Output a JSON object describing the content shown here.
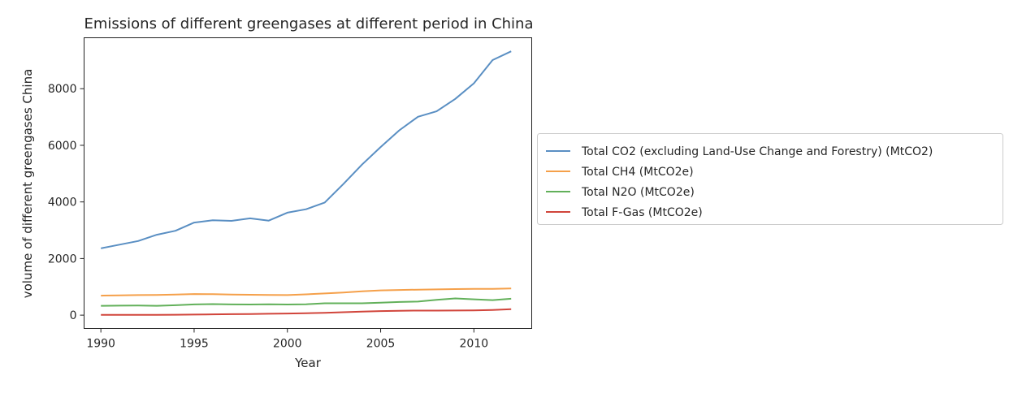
{
  "chart_data": {
    "type": "line",
    "title": "Emissions of different greengases at different period in China",
    "xlabel": "Year",
    "ylabel": "volume of different greengases China",
    "xlim": [
      1989.1,
      2013.1
    ],
    "ylim": [
      -470,
      9800
    ],
    "xticks": [
      1990,
      1995,
      2000,
      2005,
      2010
    ],
    "yticks": [
      0,
      2000,
      4000,
      6000,
      8000
    ],
    "grid": false,
    "legend_position": "center-right outside",
    "x": [
      1990,
      1991,
      1992,
      1993,
      1994,
      1995,
      1996,
      1997,
      1998,
      1999,
      2000,
      2001,
      2002,
      2003,
      2004,
      2005,
      2006,
      2007,
      2008,
      2009,
      2010,
      2011,
      2012
    ],
    "series": [
      {
        "name": "Total CO2 (excluding Land-Use Change and Forestry) (MtCO2)",
        "color": "#5a8fc3",
        "values": [
          2360,
          2490,
          2620,
          2840,
          2980,
          3270,
          3350,
          3330,
          3420,
          3340,
          3620,
          3740,
          3980,
          4630,
          5320,
          5940,
          6530,
          7010,
          7200,
          7640,
          8190,
          9010,
          9320
        ]
      },
      {
        "name": "Total CH4 (MtCO2e)",
        "color": "#f5a04a",
        "values": [
          690,
          700,
          710,
          715,
          730,
          745,
          740,
          730,
          720,
          715,
          710,
          735,
          765,
          800,
          845,
          875,
          890,
          900,
          910,
          920,
          930,
          930,
          940
        ]
      },
      {
        "name": "Total N2O (MtCO2e)",
        "color": "#62b05a",
        "values": [
          330,
          335,
          340,
          330,
          350,
          380,
          390,
          380,
          375,
          385,
          375,
          385,
          420,
          420,
          420,
          440,
          465,
          480,
          540,
          590,
          560,
          530,
          580
        ]
      },
      {
        "name": "Total F-Gas (MtCO2e)",
        "color": "#d1453b",
        "values": [
          10,
          10,
          12,
          13,
          15,
          20,
          28,
          35,
          42,
          50,
          58,
          70,
          85,
          105,
          125,
          145,
          155,
          160,
          160,
          165,
          170,
          185,
          210
        ]
      }
    ]
  }
}
